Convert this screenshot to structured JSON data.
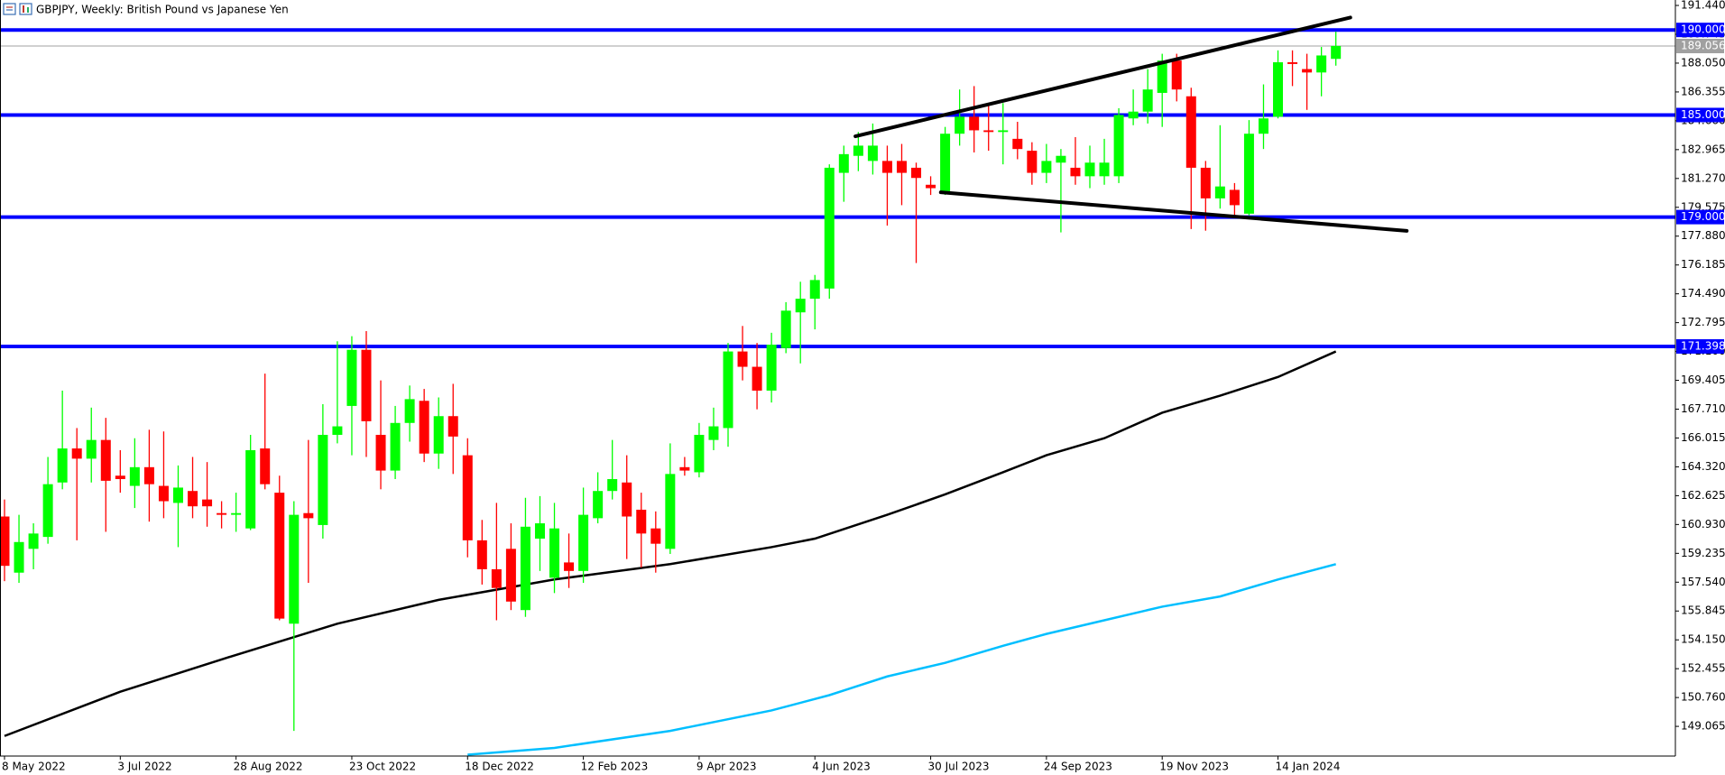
{
  "chart_data": {
    "type": "candlestick",
    "title": "GBPJPY, Weekly:  British Pound vs Japanese Yen",
    "categories": [
      "8 May 2022",
      null,
      null,
      null,
      null,
      null,
      null,
      null,
      "3 Jul 2022",
      null,
      null,
      null,
      null,
      null,
      null,
      null,
      "28 Aug 2022",
      null,
      null,
      null,
      null,
      null,
      null,
      null,
      "23 Oct 2022",
      null,
      null,
      null,
      null,
      null,
      null,
      null,
      "18 Dec 2022",
      null,
      null,
      null,
      null,
      null,
      null,
      null,
      "12 Feb 2023",
      null,
      null,
      null,
      null,
      null,
      null,
      null,
      "9 Apr 2023",
      null,
      null,
      null,
      null,
      null,
      null,
      null,
      "4 Jun 2023",
      null,
      null,
      null,
      null,
      null,
      null,
      null,
      "30 Jul 2023",
      null,
      null,
      null,
      null,
      null,
      null,
      null,
      "24 Sep 2023",
      null,
      null,
      null,
      null,
      null,
      null,
      null,
      "19 Nov 2023",
      null,
      null,
      null,
      null,
      null,
      null,
      null,
      "14 Jan 2024",
      null,
      null,
      null,
      null
    ],
    "open": [
      161.4,
      158.1,
      159.5,
      160.2,
      163.4,
      165.4,
      164.8,
      165.9,
      163.8,
      163.2,
      164.3,
      163.2,
      162.2,
      162.9,
      162.4,
      161.6,
      161.5,
      160.7,
      165.4,
      162.8,
      155.1,
      161.6,
      160.9,
      166.2,
      167.9,
      171.2,
      166.2,
      164.1,
      166.9,
      168.2,
      165.1,
      167.3,
      165.0,
      160.0,
      158.3,
      159.5,
      155.9,
      160.1,
      157.8,
      158.7,
      158.2,
      161.3,
      162.9,
      163.4,
      161.8,
      160.7,
      159.5,
      164.3,
      164.0,
      165.9,
      166.6,
      171.1,
      170.2,
      168.8,
      171.3,
      173.4,
      174.2,
      174.8,
      181.6,
      182.6,
      182.3,
      182.3,
      182.3,
      181.9,
      180.9,
      180.5,
      183.9,
      184.9,
      184.1,
      184.0,
      183.6,
      182.9,
      181.6,
      182.2,
      181.9,
      181.4,
      181.4,
      181.4,
      184.8,
      185.2,
      186.3,
      188.2,
      186.1,
      181.9,
      180.1,
      180.6,
      179.2,
      183.9,
      184.9,
      188.1,
      187.7,
      187.5,
      188.3
    ],
    "high": [
      162.4,
      161.5,
      161.0,
      164.9,
      168.8,
      166.6,
      167.8,
      167.2,
      165.3,
      166.0,
      166.5,
      166.4,
      164.4,
      164.9,
      164.6,
      162.3,
      162.8,
      166.2,
      169.8,
      163.8,
      162.3,
      165.9,
      168.0,
      171.7,
      172.0,
      172.3,
      169.4,
      167.9,
      169.1,
      168.9,
      168.4,
      169.2,
      166.0,
      161.2,
      162.2,
      161.0,
      162.5,
      162.6,
      162.2,
      160.4,
      163.1,
      164.0,
      165.9,
      165.0,
      162.8,
      161.7,
      165.7,
      164.9,
      166.9,
      167.8,
      171.6,
      172.6,
      171.6,
      172.2,
      174.0,
      175.2,
      175.6,
      182.1,
      183.2,
      184.0,
      184.5,
      183.2,
      183.3,
      182.2,
      181.4,
      184.3,
      186.5,
      186.7,
      185.6,
      185.7,
      184.6,
      183.4,
      183.3,
      183.0,
      183.7,
      183.2,
      183.6,
      185.4,
      186.5,
      187.7,
      188.6,
      188.6,
      186.6,
      182.3,
      184.4,
      181.0,
      184.7,
      186.8,
      188.8,
      188.8,
      188.6,
      189.0,
      189.9
    ],
    "low": [
      157.6,
      157.5,
      158.3,
      159.8,
      163.0,
      160.0,
      163.4,
      160.5,
      162.8,
      161.9,
      161.1,
      161.3,
      159.6,
      161.3,
      160.8,
      160.7,
      160.5,
      160.6,
      163.0,
      155.3,
      148.8,
      157.5,
      160.1,
      165.7,
      165.0,
      164.9,
      163.0,
      163.6,
      165.8,
      164.6,
      164.2,
      163.9,
      159.0,
      157.4,
      155.3,
      155.9,
      155.5,
      158.2,
      156.9,
      157.2,
      157.5,
      161.0,
      162.4,
      158.9,
      158.4,
      158.1,
      159.2,
      163.8,
      163.7,
      165.3,
      165.5,
      169.4,
      167.7,
      168.1,
      171.0,
      170.4,
      172.4,
      174.2,
      179.9,
      181.7,
      181.5,
      178.5,
      179.7,
      176.3,
      180.3,
      180.3,
      183.2,
      182.8,
      182.9,
      182.1,
      182.4,
      180.9,
      181.0,
      178.1,
      180.9,
      180.7,
      180.9,
      181.0,
      184.4,
      184.5,
      184.3,
      185.8,
      178.3,
      178.2,
      179.5,
      179.0,
      179.1,
      183.0,
      184.8,
      186.7,
      185.3,
      186.1,
      187.9
    ],
    "close": [
      158.5,
      159.9,
      160.4,
      163.3,
      165.4,
      164.8,
      165.9,
      163.5,
      163.6,
      164.3,
      163.3,
      162.3,
      163.1,
      162.0,
      162.0,
      161.5,
      161.6,
      165.3,
      163.3,
      155.4,
      161.5,
      161.3,
      166.2,
      166.7,
      171.2,
      167.0,
      164.1,
      166.9,
      168.3,
      165.1,
      167.3,
      166.1,
      160.0,
      158.3,
      157.2,
      156.4,
      160.8,
      161.0,
      160.7,
      158.2,
      161.5,
      162.9,
      163.6,
      161.4,
      160.4,
      159.8,
      163.9,
      164.1,
      166.2,
      166.7,
      171.1,
      170.2,
      168.8,
      171.5,
      173.5,
      174.2,
      175.3,
      181.9,
      182.7,
      183.2,
      183.2,
      181.6,
      181.6,
      181.3,
      180.7,
      183.9,
      184.9,
      184.1,
      184.0,
      184.1,
      183.0,
      181.6,
      182.3,
      182.6,
      181.4,
      182.2,
      182.2,
      185.0,
      185.2,
      186.5,
      188.2,
      186.5,
      181.9,
      180.1,
      180.8,
      179.7,
      183.9,
      184.8,
      188.1,
      188.0,
      187.5,
      188.5,
      189.06
    ],
    "up_color": "#00ff00",
    "down_color": "#ff0000",
    "ylim": [
      147.32,
      191.76
    ],
    "yticks": [
      {
        "value": 191.44,
        "label": "191.440"
      },
      {
        "value": 189.745,
        "label": "189.745"
      },
      {
        "value": 188.05,
        "label": "188.050"
      },
      {
        "value": 186.355,
        "label": "186.355"
      },
      {
        "value": 184.66,
        "label": "184.660"
      },
      {
        "value": 182.965,
        "label": "182.965"
      },
      {
        "value": 181.27,
        "label": "181.270"
      },
      {
        "value": 179.575,
        "label": "179.575"
      },
      {
        "value": 177.88,
        "label": "177.880"
      },
      {
        "value": 176.185,
        "label": "176.185"
      },
      {
        "value": 174.49,
        "label": "174.490"
      },
      {
        "value": 172.795,
        "label": "172.795"
      },
      {
        "value": 171.1,
        "label": "171.100"
      },
      {
        "value": 169.405,
        "label": "169.405"
      },
      {
        "value": 167.71,
        "label": "167.710"
      },
      {
        "value": 166.015,
        "label": "166.015"
      },
      {
        "value": 164.32,
        "label": "164.320"
      },
      {
        "value": 162.625,
        "label": "162.625"
      },
      {
        "value": 160.93,
        "label": "160.930"
      },
      {
        "value": 159.235,
        "label": "159.235"
      },
      {
        "value": 157.54,
        "label": "157.540"
      },
      {
        "value": 155.845,
        "label": "155.845"
      },
      {
        "value": 154.15,
        "label": "154.150"
      },
      {
        "value": 152.455,
        "label": "152.455"
      },
      {
        "value": 150.76,
        "label": "150.760"
      },
      {
        "value": 149.065,
        "label": "149.065"
      }
    ],
    "current_price": {
      "value": 189.056,
      "label": "189.056",
      "color": "#a0a0a0"
    },
    "levels": [
      {
        "value": 190,
        "label": "190.000",
        "color": "#0000ff"
      },
      {
        "value": 185,
        "label": "185.000",
        "color": "#0000ff"
      },
      {
        "value": 179,
        "label": "179.000",
        "color": "#0000ff"
      },
      {
        "value": 171.398,
        "label": "171.398",
        "color": "#0000ff"
      }
    ],
    "moving_averages": [
      {
        "color": "#000000",
        "x": [
          0,
          8,
          15,
          23,
          30,
          38,
          46,
          53,
          56,
          61,
          65,
          69,
          72,
          76,
          80,
          84,
          88,
          92
        ],
        "values": [
          148.5,
          151.1,
          153.0,
          155.1,
          156.5,
          157.7,
          158.6,
          159.6,
          160.1,
          161.5,
          162.7,
          164.0,
          165.0,
          166.0,
          167.5,
          168.5,
          169.6,
          171.1
        ]
      },
      {
        "color": "#00bfff",
        "x": [
          32,
          38,
          46,
          53,
          57,
          61,
          65,
          69,
          72,
          76,
          80,
          84,
          88,
          92
        ],
        "values": [
          147.4,
          147.8,
          148.8,
          150.0,
          150.9,
          152.0,
          152.8,
          153.8,
          154.5,
          155.3,
          156.1,
          156.7,
          157.7,
          158.6
        ]
      }
    ],
    "trendlines": [
      {
        "color": "#000000",
        "x": [
          58.8,
          93.0
        ],
        "values": [
          183.75,
          190.73
        ]
      },
      {
        "color": "#000000",
        "x": [
          64.7,
          96.9
        ],
        "values": [
          180.46,
          178.19
        ]
      }
    ]
  }
}
